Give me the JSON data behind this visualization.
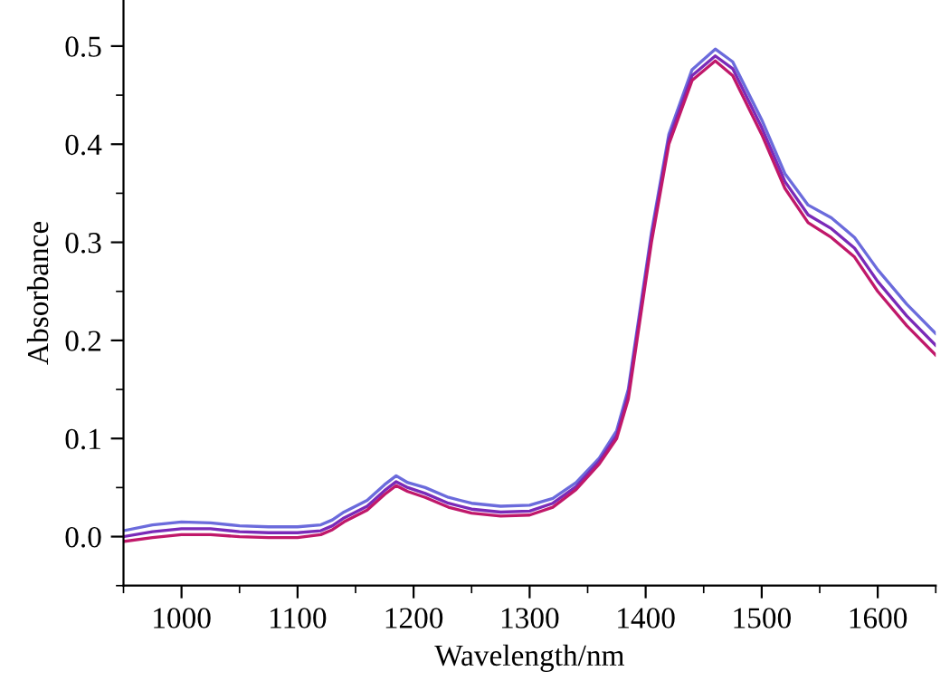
{
  "chart_data": {
    "type": "line",
    "xlabel": "Wavelength/nm",
    "ylabel": "Absorbance",
    "x": [
      950,
      975,
      1000,
      1025,
      1050,
      1075,
      1100,
      1120,
      1130,
      1140,
      1160,
      1175,
      1185,
      1195,
      1210,
      1230,
      1250,
      1275,
      1300,
      1320,
      1340,
      1360,
      1375,
      1385,
      1395,
      1405,
      1420,
      1440,
      1460,
      1475,
      1500,
      1520,
      1540,
      1560,
      1580,
      1600,
      1625,
      1650
    ],
    "series": [
      {
        "color": "#6b6bdc",
        "values": [
          0.006,
          0.012,
          0.015,
          0.014,
          0.011,
          0.01,
          0.01,
          0.012,
          0.017,
          0.025,
          0.037,
          0.053,
          0.062,
          0.055,
          0.05,
          0.04,
          0.034,
          0.031,
          0.032,
          0.039,
          0.055,
          0.08,
          0.108,
          0.15,
          0.23,
          0.31,
          0.41,
          0.476,
          0.497,
          0.484,
          0.425,
          0.37,
          0.338,
          0.325,
          0.305,
          0.272,
          0.237,
          0.207
        ]
      },
      {
        "color": "#7a2ab8",
        "values": [
          0.0,
          0.005,
          0.008,
          0.008,
          0.005,
          0.004,
          0.004,
          0.006,
          0.011,
          0.019,
          0.031,
          0.047,
          0.056,
          0.05,
          0.044,
          0.034,
          0.028,
          0.025,
          0.026,
          0.034,
          0.051,
          0.077,
          0.103,
          0.145,
          0.225,
          0.305,
          0.405,
          0.47,
          0.49,
          0.477,
          0.417,
          0.362,
          0.328,
          0.314,
          0.294,
          0.26,
          0.225,
          0.195
        ]
      },
      {
        "color": "#c0186a",
        "values": [
          -0.005,
          -0.001,
          0.002,
          0.002,
          0.0,
          -0.001,
          -0.001,
          0.002,
          0.007,
          0.015,
          0.027,
          0.043,
          0.052,
          0.046,
          0.04,
          0.03,
          0.024,
          0.021,
          0.022,
          0.03,
          0.048,
          0.074,
          0.1,
          0.14,
          0.22,
          0.3,
          0.4,
          0.465,
          0.485,
          0.47,
          0.41,
          0.355,
          0.32,
          0.305,
          0.285,
          0.25,
          0.215,
          0.185
        ]
      }
    ],
    "xlim": [
      950,
      1650
    ],
    "ylim": [
      -0.05,
      0.547
    ],
    "xticks": [
      1000,
      1100,
      1200,
      1300,
      1400,
      1500,
      1600
    ],
    "yticks": [
      {
        "value": 0,
        "label": "0.0"
      },
      0.1,
      0.2,
      0.3,
      0.4,
      0.5
    ],
    "grid": false,
    "legend": false,
    "marker": "none",
    "line_style": "solid"
  }
}
